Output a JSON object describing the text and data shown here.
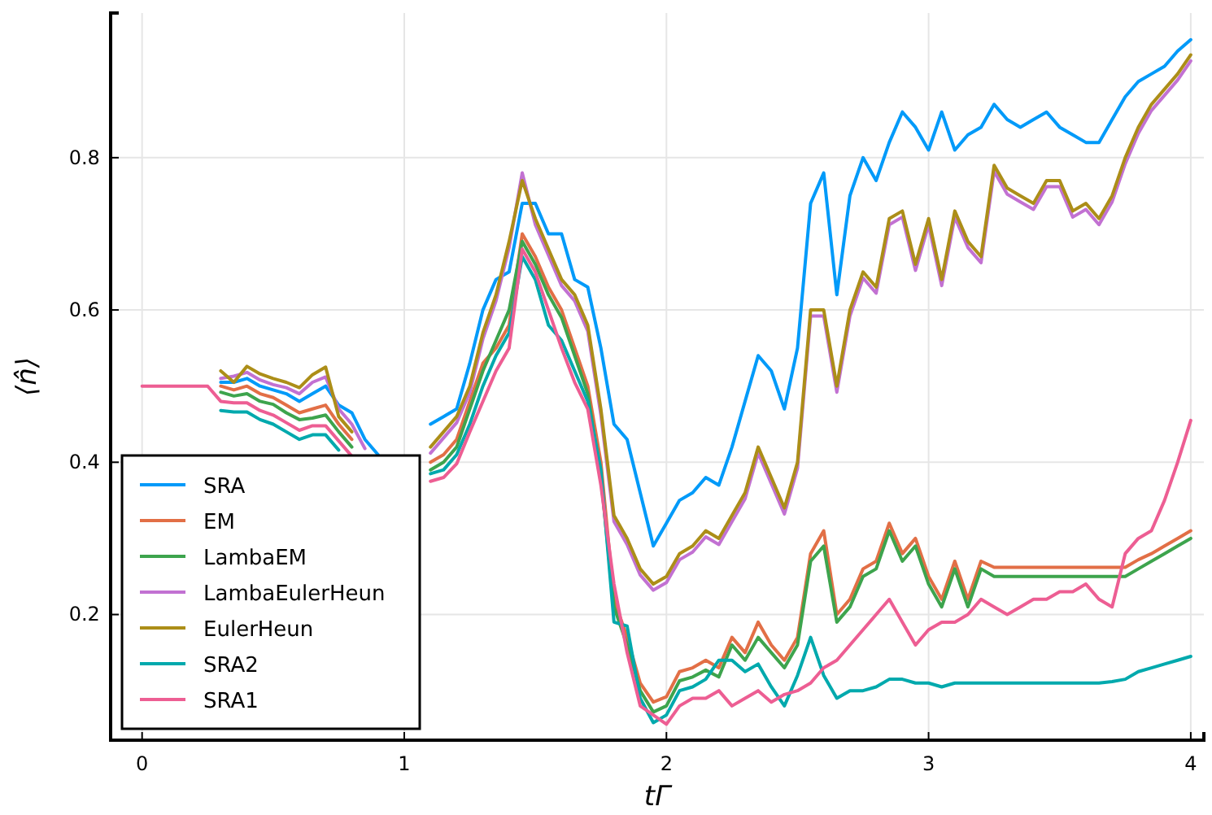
{
  "chart_data": {
    "type": "line",
    "xlabel": "tΓ",
    "ylabel": "⟨n̂⟩",
    "x": [
      0,
      0.05,
      0.1,
      0.15,
      0.2,
      0.25,
      0.3,
      0.35,
      0.4,
      0.45,
      0.5,
      0.55,
      0.6,
      0.65,
      0.7,
      0.75,
      0.8,
      0.85,
      0.9,
      0.95,
      1,
      1.05,
      1.1,
      1.15,
      1.2,
      1.25,
      1.3,
      1.35,
      1.4,
      1.45,
      1.5,
      1.55,
      1.6,
      1.65,
      1.7,
      1.75,
      1.8,
      1.85,
      1.9,
      1.95,
      2,
      2.05,
      2.1,
      2.15,
      2.2,
      2.25,
      2.3,
      2.35,
      2.4,
      2.45,
      2.5,
      2.55,
      2.6,
      2.65,
      2.7,
      2.75,
      2.8,
      2.85,
      2.9,
      2.95,
      3,
      3.05,
      3.1,
      3.15,
      3.2,
      3.25,
      3.3,
      3.35,
      3.4,
      3.45,
      3.5,
      3.55,
      3.6,
      3.65,
      3.7,
      3.75,
      3.8,
      3.85,
      3.9,
      3.95,
      4
    ],
    "xlim": [
      -0.12,
      4.05
    ],
    "ylim": [
      0.035,
      0.99
    ],
    "xticks": [
      0,
      1,
      2,
      3,
      4
    ],
    "yticks": [
      0.2,
      0.4,
      0.6,
      0.8
    ],
    "grid": true,
    "legend": "bottom left",
    "line_style": "solid",
    "marker": "none",
    "series": [
      {
        "name": "SRA",
        "color": "#009af9",
        "values": [
          null,
          null,
          null,
          null,
          null,
          null,
          0.505,
          0.505,
          0.51,
          0.5,
          0.495,
          0.49,
          0.48,
          0.49,
          0.5,
          0.475,
          0.465,
          0.43,
          0.41,
          null,
          null,
          null,
          0.45,
          0.46,
          0.47,
          0.53,
          0.6,
          0.64,
          0.65,
          0.74,
          0.74,
          0.7,
          0.7,
          0.64,
          0.63,
          0.55,
          0.45,
          0.43,
          0.36,
          0.29,
          0.32,
          0.35,
          0.36,
          0.38,
          0.37,
          0.42,
          0.48,
          0.54,
          0.52,
          0.47,
          0.55,
          0.74,
          0.78,
          0.62,
          0.75,
          0.8,
          0.77,
          0.82,
          0.86,
          0.84,
          0.81,
          0.86,
          0.81,
          0.83,
          0.84,
          0.87,
          0.85,
          0.84,
          0.85,
          0.86,
          0.84,
          0.83,
          0.82,
          0.82,
          0.85,
          0.88,
          0.9,
          0.91,
          0.92,
          0.94,
          0.955
        ]
      },
      {
        "name": "EM",
        "color": "#e26f46",
        "values": [
          null,
          null,
          null,
          null,
          null,
          null,
          0.5,
          0.495,
          0.5,
          0.49,
          0.485,
          0.475,
          0.465,
          0.47,
          0.475,
          0.45,
          0.43,
          null,
          null,
          null,
          null,
          null,
          0.4,
          0.41,
          0.43,
          0.48,
          0.53,
          0.55,
          0.58,
          0.7,
          0.67,
          0.63,
          0.6,
          0.55,
          0.5,
          0.4,
          0.22,
          0.17,
          0.11,
          0.085,
          0.092,
          0.125,
          0.13,
          0.14,
          0.13,
          0.17,
          0.15,
          0.19,
          0.16,
          0.14,
          0.17,
          0.28,
          0.31,
          0.2,
          0.22,
          0.26,
          0.27,
          0.32,
          0.28,
          0.3,
          0.25,
          0.22,
          0.27,
          0.22,
          0.27,
          0.262,
          0.262,
          0.262,
          0.262,
          0.262,
          0.262,
          0.262,
          0.262,
          0.262,
          0.262,
          0.262,
          0.272,
          0.28,
          0.29,
          0.3,
          0.31
        ]
      },
      {
        "name": "LambaEM",
        "color": "#3da44d",
        "values": [
          null,
          null,
          null,
          null,
          null,
          null,
          0.492,
          0.487,
          0.49,
          0.48,
          0.476,
          0.465,
          0.456,
          0.458,
          0.462,
          0.44,
          0.42,
          null,
          null,
          null,
          null,
          null,
          0.39,
          0.4,
          0.42,
          0.47,
          0.52,
          0.56,
          0.6,
          0.69,
          0.66,
          0.62,
          0.59,
          0.54,
          0.49,
          0.38,
          0.21,
          0.16,
          0.1,
          0.072,
          0.08,
          0.113,
          0.118,
          0.127,
          0.118,
          0.16,
          0.14,
          0.17,
          0.15,
          0.13,
          0.16,
          0.27,
          0.29,
          0.19,
          0.21,
          0.25,
          0.26,
          0.31,
          0.27,
          0.29,
          0.24,
          0.21,
          0.26,
          0.21,
          0.26,
          0.25,
          0.25,
          0.25,
          0.25,
          0.25,
          0.25,
          0.25,
          0.25,
          0.25,
          0.25,
          0.25,
          0.26,
          0.27,
          0.28,
          0.29,
          0.3
        ]
      },
      {
        "name": "LambaEulerHeun",
        "color": "#c271d2",
        "values": [
          null,
          null,
          null,
          null,
          null,
          null,
          0.51,
          0.513,
          0.518,
          0.508,
          0.502,
          0.498,
          0.49,
          0.505,
          0.512,
          0.47,
          0.45,
          0.418,
          null,
          null,
          null,
          null,
          0.412,
          0.432,
          0.452,
          0.492,
          0.562,
          0.612,
          0.682,
          0.78,
          0.712,
          0.672,
          0.632,
          0.612,
          0.572,
          0.462,
          0.322,
          0.292,
          0.252,
          0.232,
          0.242,
          0.272,
          0.282,
          0.302,
          0.292,
          0.322,
          0.352,
          0.412,
          0.372,
          0.332,
          0.392,
          0.592,
          0.592,
          0.492,
          0.592,
          0.642,
          0.622,
          0.712,
          0.722,
          0.652,
          0.712,
          0.632,
          0.722,
          0.682,
          0.662,
          0.782,
          0.752,
          0.742,
          0.732,
          0.762,
          0.762,
          0.722,
          0.732,
          0.712,
          0.742,
          0.792,
          0.832,
          0.862,
          0.882,
          0.902,
          0.927
        ]
      },
      {
        "name": "EulerHeun",
        "color": "#ac8e18",
        "values": [
          null,
          null,
          null,
          null,
          null,
          null,
          0.52,
          0.505,
          0.526,
          0.516,
          0.51,
          0.505,
          0.498,
          0.515,
          0.525,
          0.46,
          0.44,
          null,
          null,
          null,
          null,
          null,
          0.42,
          0.44,
          0.46,
          0.5,
          0.57,
          0.62,
          0.69,
          0.77,
          0.72,
          0.68,
          0.64,
          0.62,
          0.58,
          0.47,
          0.33,
          0.3,
          0.26,
          0.24,
          0.25,
          0.28,
          0.29,
          0.31,
          0.3,
          0.33,
          0.36,
          0.42,
          0.38,
          0.34,
          0.4,
          0.6,
          0.6,
          0.5,
          0.6,
          0.65,
          0.63,
          0.72,
          0.73,
          0.66,
          0.72,
          0.64,
          0.73,
          0.69,
          0.67,
          0.79,
          0.76,
          0.75,
          0.74,
          0.77,
          0.77,
          0.73,
          0.74,
          0.72,
          0.75,
          0.8,
          0.84,
          0.87,
          0.89,
          0.91,
          0.935
        ]
      },
      {
        "name": "SRA2",
        "color": "#00a9ad",
        "values": [
          null,
          null,
          null,
          null,
          null,
          null,
          0.468,
          0.466,
          0.466,
          0.456,
          0.45,
          0.44,
          0.43,
          0.436,
          0.436,
          0.416,
          null,
          null,
          null,
          null,
          null,
          null,
          0.385,
          0.39,
          0.41,
          0.45,
          0.5,
          0.54,
          0.57,
          0.67,
          0.64,
          0.58,
          0.56,
          0.52,
          0.48,
          0.39,
          0.19,
          0.185,
          0.09,
          0.058,
          0.068,
          0.1,
          0.105,
          0.115,
          0.14,
          0.14,
          0.125,
          0.135,
          0.105,
          0.08,
          0.12,
          0.17,
          0.12,
          0.09,
          0.1,
          0.1,
          0.105,
          0.115,
          0.115,
          0.11,
          0.11,
          0.105,
          0.11,
          0.11,
          0.11,
          0.11,
          0.11,
          0.11,
          0.11,
          0.11,
          0.11,
          0.11,
          0.11,
          0.11,
          0.112,
          0.115,
          0.125,
          0.13,
          0.135,
          0.14,
          0.145
        ]
      },
      {
        "name": "SRA1",
        "color": "#ed5e93",
        "values": [
          0.5,
          0.5,
          0.5,
          0.5,
          0.5,
          0.5,
          0.48,
          0.478,
          0.478,
          0.468,
          0.462,
          0.452,
          0.442,
          0.448,
          0.448,
          0.428,
          0.408,
          null,
          null,
          null,
          null,
          null,
          0.375,
          0.38,
          0.398,
          0.44,
          0.48,
          0.52,
          0.55,
          0.68,
          0.65,
          0.6,
          0.55,
          0.505,
          0.47,
          0.37,
          0.24,
          0.15,
          0.08,
          0.068,
          0.056,
          0.08,
          0.09,
          0.09,
          0.1,
          0.08,
          0.09,
          0.1,
          0.085,
          0.095,
          0.1,
          0.11,
          0.13,
          0.14,
          0.16,
          0.18,
          0.2,
          0.22,
          0.19,
          0.16,
          0.18,
          0.19,
          0.19,
          0.2,
          0.22,
          0.21,
          0.2,
          0.21,
          0.22,
          0.22,
          0.23,
          0.23,
          0.24,
          0.22,
          0.21,
          0.28,
          0.3,
          0.31,
          0.35,
          0.4,
          0.455
        ]
      }
    ]
  }
}
